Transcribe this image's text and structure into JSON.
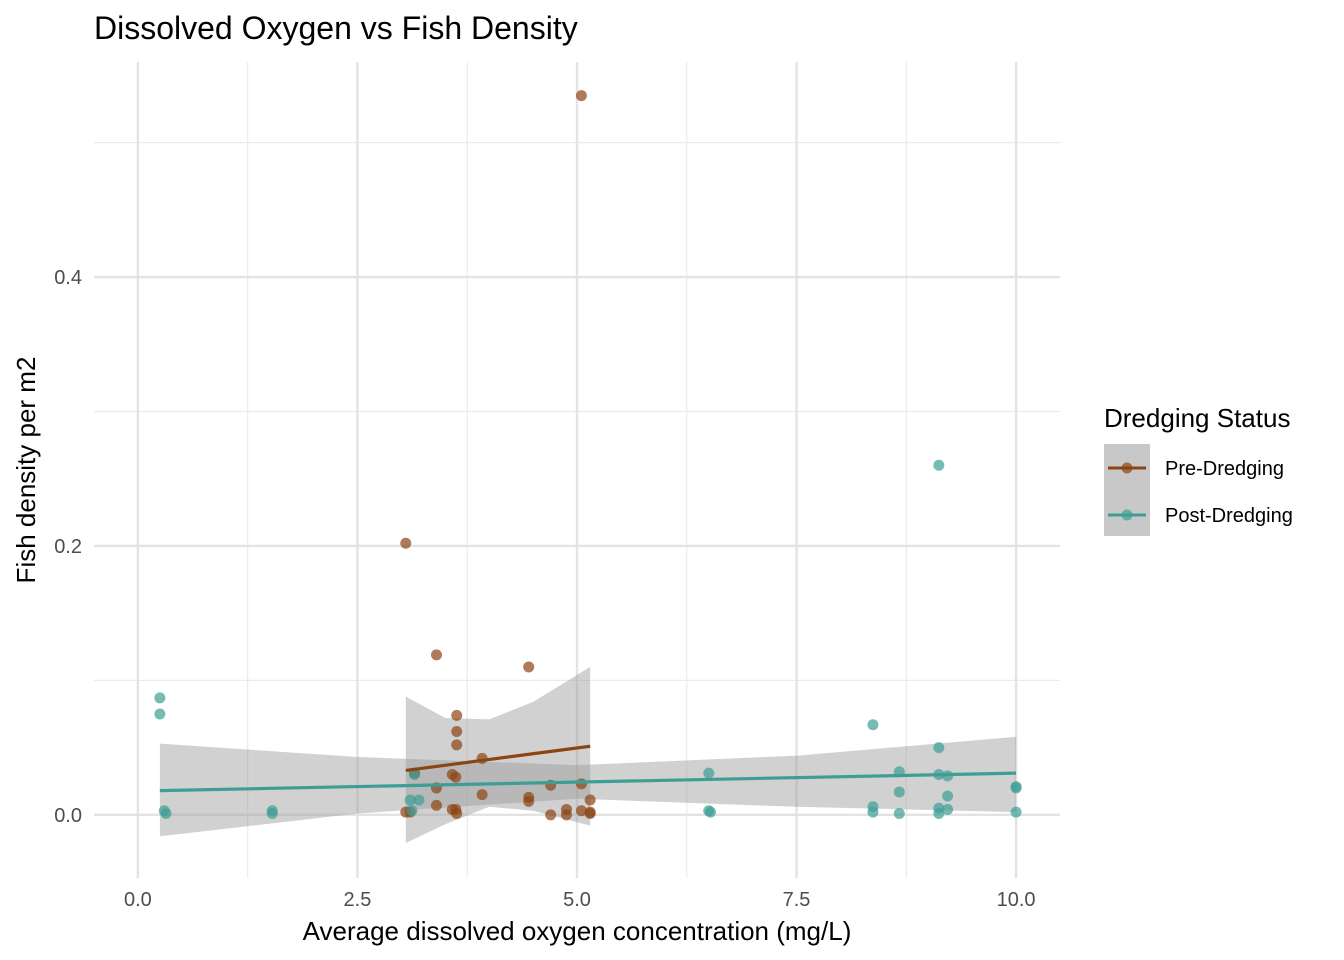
{
  "chart_data": {
    "type": "scatter",
    "title": "Dissolved Oxygen vs Fish Density",
    "xlabel": "Average dissolved oxygen concentration (mg/L)",
    "ylabel": "Fish density per m2",
    "xlim": [
      -0.5,
      10.5
    ],
    "ylim": [
      -0.047,
      0.56
    ],
    "x_ticks": [
      0,
      2.5,
      5,
      7.5,
      10
    ],
    "x_tick_labels": [
      "0.0",
      "2.5",
      "5.0",
      "7.5",
      "10.0"
    ],
    "y_ticks": [
      0,
      0.2,
      0.4
    ],
    "y_tick_labels": [
      "0.0",
      "0.2",
      "0.4"
    ],
    "grid": true,
    "legend": {
      "title": "Dredging Status",
      "position": "right"
    },
    "series": [
      {
        "name": "Pre-Dredging",
        "color": "#8B4513",
        "points": [
          [
            5.05,
            0.535
          ],
          [
            3.05,
            0.202
          ],
          [
            3.4,
            0.119
          ],
          [
            4.45,
            0.11
          ],
          [
            3.63,
            0.074
          ],
          [
            3.63,
            0.062
          ],
          [
            3.63,
            0.052
          ],
          [
            3.92,
            0.042
          ],
          [
            3.15,
            0.031
          ],
          [
            3.58,
            0.03
          ],
          [
            3.62,
            0.028
          ],
          [
            4.7,
            0.022
          ],
          [
            5.05,
            0.023
          ],
          [
            3.4,
            0.02
          ],
          [
            3.92,
            0.015
          ],
          [
            4.45,
            0.013
          ],
          [
            4.45,
            0.01
          ],
          [
            5.15,
            0.011
          ],
          [
            3.4,
            0.007
          ],
          [
            3.58,
            0.004
          ],
          [
            3.62,
            0.004
          ],
          [
            4.88,
            0.004
          ],
          [
            5.05,
            0.003
          ],
          [
            5.15,
            0.002
          ],
          [
            3.05,
            0.002
          ],
          [
            3.63,
            0.001
          ],
          [
            4.7,
            0.0
          ],
          [
            4.88,
            0.0
          ],
          [
            5.15,
            0.001
          ],
          [
            3.1,
            0.002
          ]
        ],
        "trend": [
          [
            3.05,
            0.033
          ],
          [
            5.15,
            0.051
          ]
        ],
        "ci_lower": [
          [
            3.05,
            -0.021
          ],
          [
            3.5,
            -0.007
          ],
          [
            4.0,
            0.006
          ],
          [
            4.5,
            0.003
          ],
          [
            5.15,
            -0.008
          ]
        ],
        "ci_upper": [
          [
            3.05,
            0.088
          ],
          [
            3.5,
            0.072
          ],
          [
            4.0,
            0.071
          ],
          [
            4.5,
            0.084
          ],
          [
            5.15,
            0.11
          ]
        ]
      },
      {
        "name": "Post-Dredging",
        "color": "#3D9E96",
        "points": [
          [
            0.25,
            0.087
          ],
          [
            0.25,
            0.075
          ],
          [
            0.3,
            0.003
          ],
          [
            0.32,
            0.001
          ],
          [
            1.53,
            0.003
          ],
          [
            1.53,
            0.001
          ],
          [
            3.1,
            0.011
          ],
          [
            3.2,
            0.011
          ],
          [
            3.12,
            0.003
          ],
          [
            3.15,
            0.03
          ],
          [
            6.5,
            0.031
          ],
          [
            6.5,
            0.003
          ],
          [
            6.52,
            0.002
          ],
          [
            8.37,
            0.067
          ],
          [
            8.37,
            0.006
          ],
          [
            8.37,
            0.002
          ],
          [
            8.67,
            0.032
          ],
          [
            8.67,
            0.017
          ],
          [
            8.67,
            0.001
          ],
          [
            9.12,
            0.26
          ],
          [
            9.12,
            0.05
          ],
          [
            9.12,
            0.03
          ],
          [
            9.12,
            0.005
          ],
          [
            9.12,
            0.001
          ],
          [
            9.22,
            0.029
          ],
          [
            9.22,
            0.014
          ],
          [
            9.22,
            0.004
          ],
          [
            10.0,
            0.021
          ],
          [
            10.0,
            0.02
          ],
          [
            10.0,
            0.002
          ]
        ],
        "trend": [
          [
            0.25,
            0.018
          ],
          [
            10.0,
            0.031
          ]
        ],
        "ci_lower": [
          [
            0.25,
            -0.016
          ],
          [
            2.5,
            0.001
          ],
          [
            5.0,
            0.012
          ],
          [
            7.5,
            0.006
          ],
          [
            10.0,
            0.002
          ]
        ],
        "ci_upper": [
          [
            0.25,
            0.053
          ],
          [
            2.5,
            0.043
          ],
          [
            5.0,
            0.037
          ],
          [
            7.5,
            0.044
          ],
          [
            10.0,
            0.058
          ]
        ]
      }
    ]
  }
}
